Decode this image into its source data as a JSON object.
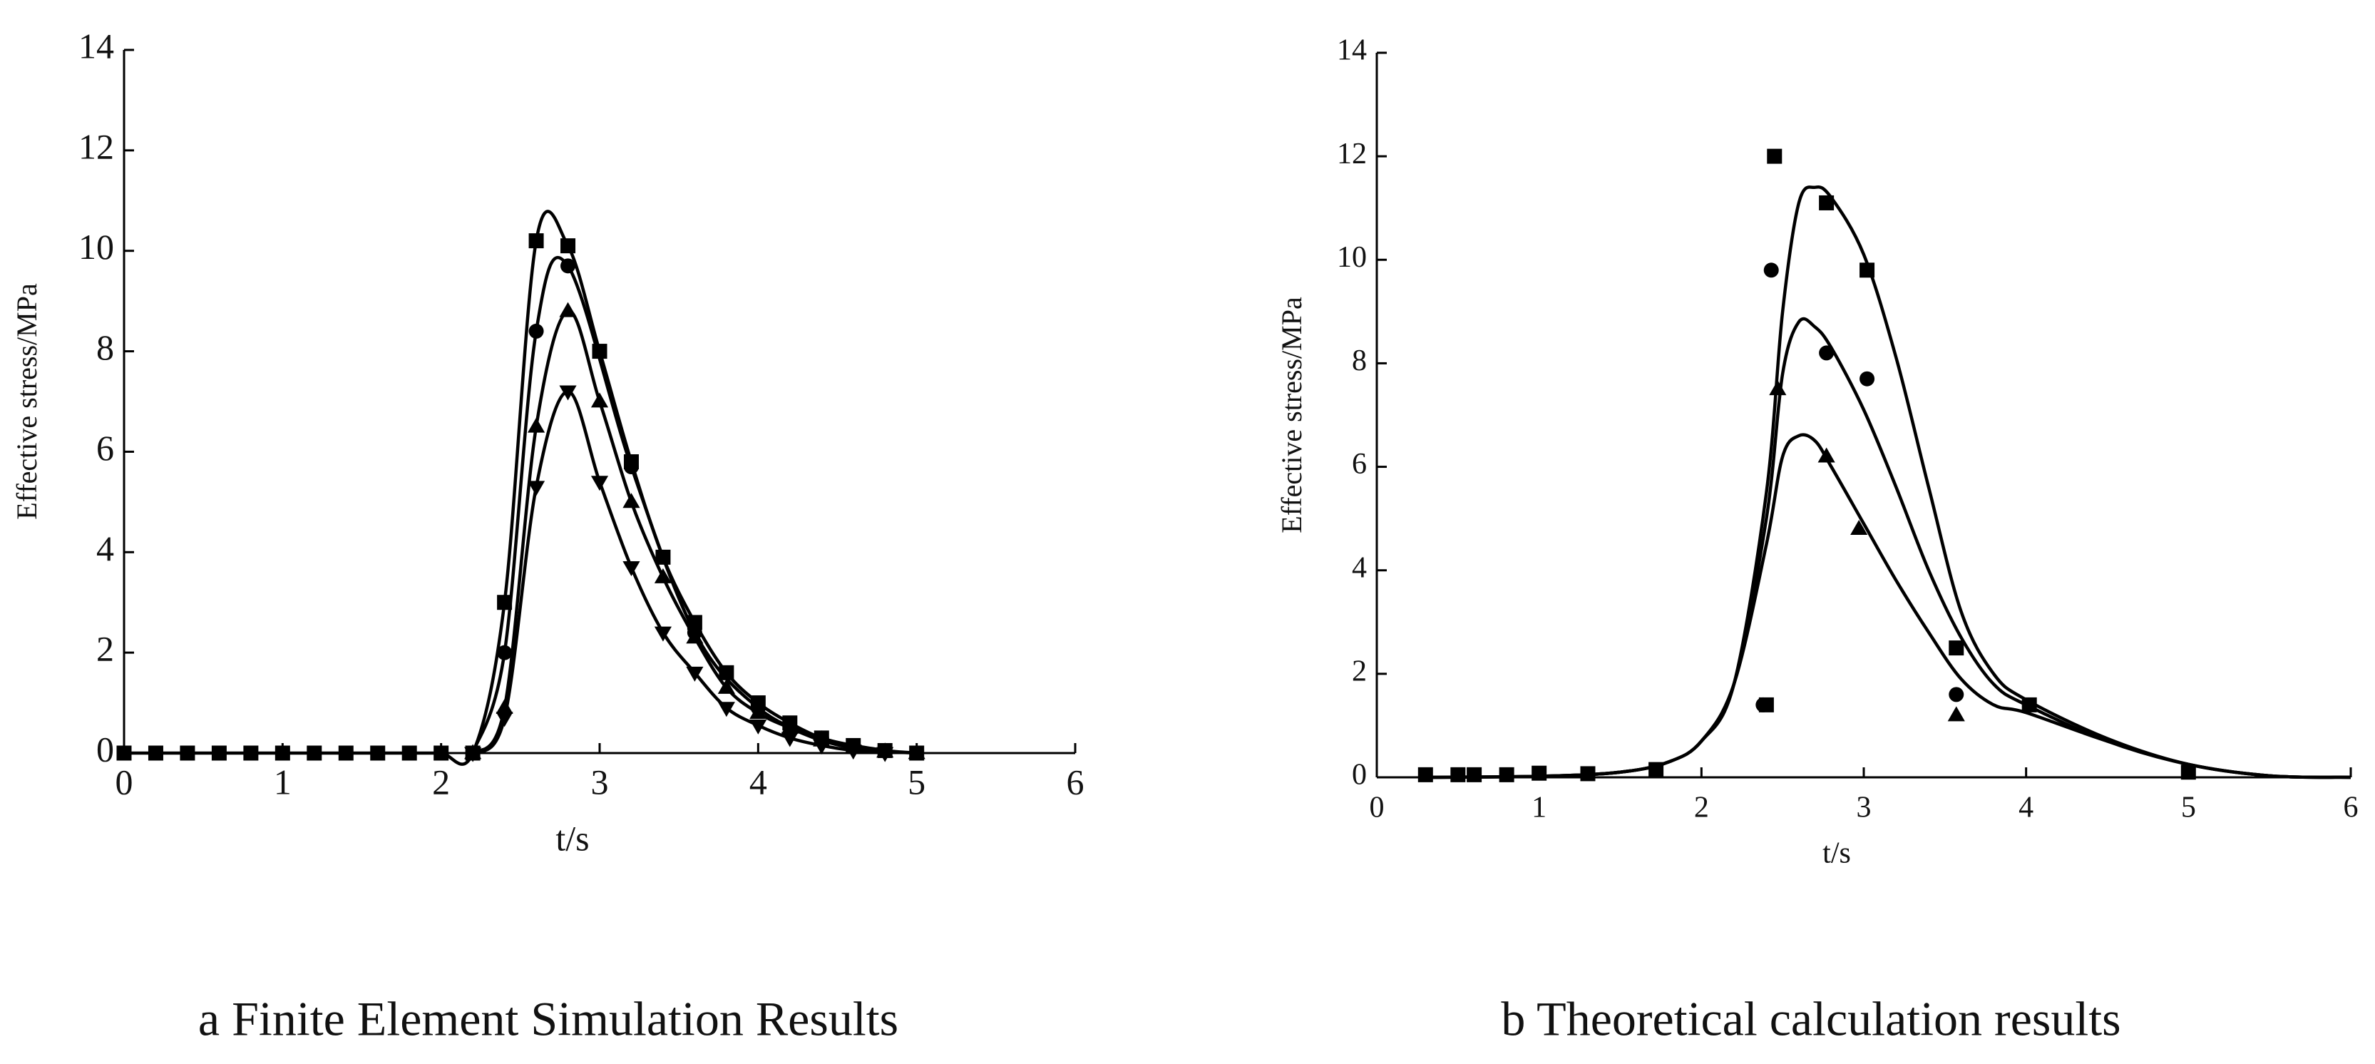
{
  "chart_data": [
    {
      "type": "line",
      "title": "a Finite Element Simulation Results",
      "x_label": "t/s",
      "y_label": "Effective stress/MPa",
      "xlim": [
        0,
        6
      ],
      "ylim": [
        0,
        14
      ],
      "xticks": [
        0,
        1,
        2,
        3,
        4,
        5,
        6
      ],
      "yticks": [
        0,
        2,
        4,
        6,
        8,
        10,
        12,
        14
      ],
      "series": [
        {
          "color": "#000000",
          "marker": "square",
          "line": true,
          "x": [
            0,
            0.2,
            0.4,
            0.6,
            0.8,
            1.0,
            1.2,
            1.4,
            1.6,
            1.8,
            2.0,
            2.2,
            2.4,
            2.6,
            2.8,
            3.0,
            3.2,
            3.4,
            3.6,
            3.8,
            4.0,
            4.2,
            4.4,
            4.6,
            4.8,
            5.0
          ],
          "values": [
            0,
            0,
            0,
            0,
            0,
            0,
            0,
            0,
            0,
            0,
            0,
            0,
            3.0,
            10.2,
            10.1,
            8.0,
            5.8,
            3.9,
            2.6,
            1.6,
            1.0,
            0.6,
            0.3,
            0.15,
            0.05,
            0
          ]
        },
        {
          "color": "#000000",
          "marker": "circle",
          "line": true,
          "x": [
            2.2,
            2.4,
            2.6,
            2.8,
            3.2,
            3.6,
            4.0,
            4.4,
            4.8
          ],
          "values": [
            0,
            2.0,
            8.4,
            9.7,
            5.7,
            2.4,
            0.9,
            0.3,
            0.05
          ]
        },
        {
          "color": "#000000",
          "marker": "triangle",
          "line": true,
          "x": [
            2.2,
            2.4,
            2.6,
            2.8,
            3.0,
            3.2,
            3.4,
            3.6,
            3.8,
            4.0,
            4.2,
            4.4,
            4.6,
            4.8,
            5.0
          ],
          "values": [
            0,
            0.9,
            6.5,
            8.8,
            7.0,
            5.0,
            3.5,
            2.3,
            1.3,
            0.8,
            0.5,
            0.25,
            0.1,
            0.03,
            0
          ]
        },
        {
          "color": "#000000",
          "marker": "triangle-down",
          "line": true,
          "x": [
            2.2,
            2.4,
            2.6,
            2.8,
            3.0,
            3.2,
            3.4,
            3.6,
            3.8,
            4.0,
            4.2,
            4.4,
            4.6,
            4.8
          ],
          "values": [
            0,
            0.7,
            5.3,
            7.2,
            5.4,
            3.7,
            2.4,
            1.6,
            0.9,
            0.55,
            0.3,
            0.15,
            0.05,
            0
          ]
        }
      ]
    },
    {
      "type": "line",
      "title": "b Theoretical calculation results",
      "x_label": "t/s",
      "y_label": "Effective stress/MPa",
      "xlim": [
        0,
        6
      ],
      "ylim": [
        0,
        14
      ],
      "xticks": [
        0,
        1,
        2,
        3,
        4,
        5,
        6
      ],
      "yticks": [
        0,
        2,
        4,
        6,
        8,
        10,
        12,
        14
      ],
      "series": [
        {
          "color": "#000000",
          "marker": "none",
          "line": true,
          "x": [
            0.3,
            1.0,
            1.5,
            1.8,
            2.0,
            2.2,
            2.4,
            2.5,
            2.6,
            2.7,
            2.8,
            3.0,
            3.2,
            3.4,
            3.6,
            3.8,
            4.0,
            4.5,
            5.0,
            5.5,
            6.0
          ],
          "values": [
            0,
            0.02,
            0.1,
            0.3,
            0.7,
            1.8,
            5.5,
            9.0,
            11.1,
            11.4,
            11.2,
            10.1,
            8.1,
            5.6,
            3.2,
            2.0,
            1.5,
            0.75,
            0.25,
            0.03,
            0
          ]
        },
        {
          "color": "#000000",
          "marker": "none",
          "line": true,
          "x": [
            0.3,
            1.0,
            1.5,
            1.8,
            2.0,
            2.2,
            2.4,
            2.5,
            2.6,
            2.7,
            2.8,
            3.0,
            3.2,
            3.4,
            3.6,
            3.8,
            4.0,
            4.5,
            5.0,
            5.5,
            6.0
          ],
          "values": [
            0,
            0.02,
            0.1,
            0.3,
            0.7,
            1.8,
            5.0,
            7.8,
            8.8,
            8.7,
            8.3,
            7.1,
            5.6,
            4.0,
            2.7,
            1.8,
            1.4,
            0.7,
            0.25,
            0.03,
            0
          ]
        },
        {
          "color": "#000000",
          "marker": "none",
          "line": true,
          "x": [
            0.3,
            1.0,
            1.5,
            1.8,
            2.0,
            2.2,
            2.4,
            2.5,
            2.6,
            2.7,
            2.8,
            3.0,
            3.2,
            3.4,
            3.6,
            3.8,
            4.0,
            4.5,
            5.0,
            5.5,
            6.0
          ],
          "values": [
            0,
            0.02,
            0.1,
            0.3,
            0.7,
            1.8,
            4.5,
            6.2,
            6.6,
            6.5,
            6.0,
            4.9,
            3.8,
            2.8,
            1.9,
            1.4,
            1.25,
            0.7,
            0.25,
            0.03,
            0
          ]
        },
        {
          "color": "#000000",
          "marker": "square",
          "line": false,
          "x": [
            0.3,
            0.5,
            0.6,
            0.8,
            1.0,
            1.3,
            1.72,
            2.4,
            2.45,
            2.77,
            3.02,
            3.57,
            4.02,
            5.0
          ],
          "values": [
            0.05,
            0.05,
            0.05,
            0.05,
            0.08,
            0.07,
            0.15,
            1.4,
            12.0,
            11.1,
            9.8,
            2.5,
            1.4,
            0.1
          ]
        },
        {
          "color": "#000000",
          "marker": "circle",
          "line": false,
          "x": [
            2.38,
            2.43,
            2.77,
            3.02,
            3.57
          ],
          "values": [
            1.4,
            9.8,
            8.2,
            7.7,
            1.6
          ]
        },
        {
          "color": "#000000",
          "marker": "triangle",
          "line": false,
          "x": [
            2.47,
            2.77,
            2.97,
            3.57
          ],
          "values": [
            7.5,
            6.2,
            4.8,
            1.2
          ]
        }
      ]
    }
  ]
}
